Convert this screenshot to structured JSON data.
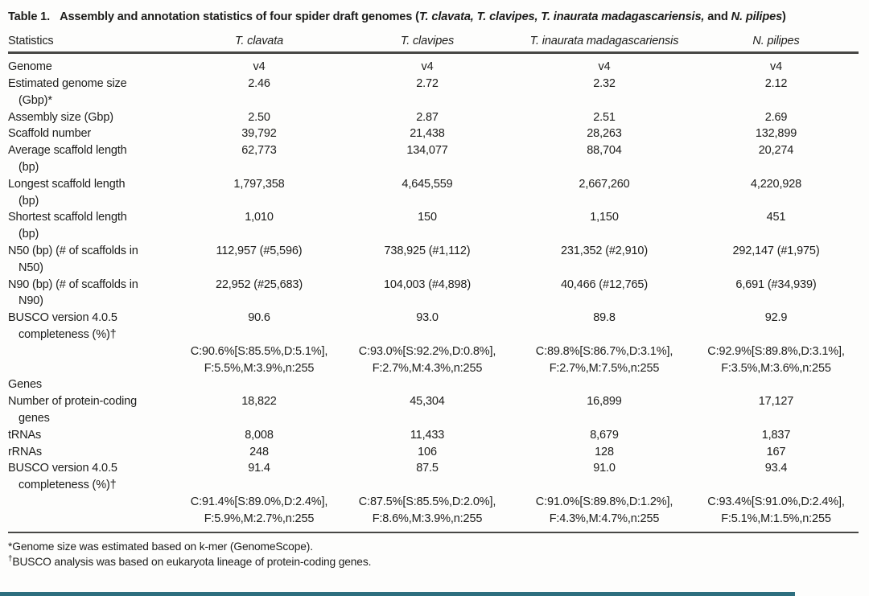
{
  "title": {
    "label": "Table 1.",
    "intro": "Assembly and annotation statistics of four spider draft genomes (",
    "species_group": "T. clavata, T. clavipes, T. inaurata madagascariensis,",
    "conjunction": "and",
    "last_species": "N. pilipes",
    "close_paren": ")"
  },
  "table": {
    "columns": [
      "Statistics",
      "T. clavata",
      "T. clavipes",
      "T. inaurata madagascariensis",
      "N. pilipes"
    ],
    "rows": [
      {
        "label": "Genome",
        "values": [
          "v4",
          "v4",
          "v4",
          "v4"
        ]
      },
      {
        "label": "Estimated genome size",
        "label2": "(Gbp)*",
        "values": [
          "2.46",
          "2.72",
          "2.32",
          "2.12"
        ]
      },
      {
        "label": "Assembly size (Gbp)",
        "values": [
          "2.50",
          "2.87",
          "2.51",
          "2.69"
        ]
      },
      {
        "label": "Scaffold number",
        "values": [
          "39,792",
          "21,438",
          "28,263",
          "132,899"
        ]
      },
      {
        "label": "Average scaffold length",
        "label2": "(bp)",
        "values": [
          "62,773",
          "134,077",
          "88,704",
          "20,274"
        ]
      },
      {
        "label": "Longest scaffold length",
        "label2": "(bp)",
        "values": [
          "1,797,358",
          "4,645,559",
          "2,667,260",
          "4,220,928"
        ]
      },
      {
        "label": "Shortest scaffold length",
        "label2": "(bp)",
        "values": [
          "1,010",
          "150",
          "1,150",
          "451"
        ]
      },
      {
        "label": "N50 (bp) (# of scaffolds in",
        "label2": "N50)",
        "values": [
          "112,957 (#5,596)",
          "738,925 (#1,112)",
          "231,352 (#2,910)",
          "292,147 (#1,975)"
        ]
      },
      {
        "label": "N90 (bp) (# of scaffolds in",
        "label2": "N90)",
        "values": [
          "22,952 (#25,683)",
          "104,003 (#4,898)",
          "40,466 (#12,765)",
          "6,691 (#34,939)"
        ]
      },
      {
        "label": "BUSCO version 4.0.5",
        "label2": "completeness (%)†",
        "values": [
          "90.6",
          "93.0",
          "89.8",
          "92.9"
        ]
      },
      {
        "values_l1": [
          "C:90.6%[S:85.5%,D:5.1%],",
          "C:93.0%[S:92.2%,D:0.8%],",
          "C:89.8%[S:86.7%,D:3.1%],",
          "C:92.9%[S:89.8%,D:3.1%],"
        ],
        "values_l2": [
          "F:5.5%,M:3.9%,n:255",
          "F:2.7%,M:4.3%,n:255",
          "F:2.7%,M:7.5%,n:255",
          "F:3.5%,M:3.6%,n:255"
        ]
      },
      {
        "label": "Genes",
        "section": true
      },
      {
        "label": "Number of protein-coding",
        "label2": "genes",
        "values": [
          "18,822",
          "45,304",
          "16,899",
          "17,127"
        ]
      },
      {
        "label": "tRNAs",
        "values": [
          "8,008",
          "11,433",
          "8,679",
          "1,837"
        ]
      },
      {
        "label": "rRNAs",
        "values": [
          "248",
          "106",
          "128",
          "167"
        ]
      },
      {
        "label": "BUSCO version 4.0.5",
        "label2": "completeness (%)†",
        "values": [
          "91.4",
          "87.5",
          "91.0",
          "93.4"
        ]
      },
      {
        "values_l1": [
          "C:91.4%[S:89.0%,D:2.4%],",
          "C:87.5%[S:85.5%,D:2.0%],",
          "C:91.0%[S:89.8%,D:1.2%],",
          "C:93.4%[S:91.0%,D:2.4%],"
        ],
        "values_l2": [
          "F:5.9%,M:2.7%,n:255",
          "F:8.6%,M:3.9%,n:255",
          "F:4.3%,M:4.7%,n:255",
          "F:5.1%,M:1.5%,n:255"
        ]
      }
    ]
  },
  "footnotes": [
    {
      "marker": "*",
      "text": "Genome size was estimated based on k-mer (GenomeScope)."
    },
    {
      "marker": "†",
      "text": "BUSCO analysis was based on eukaryota lineage of protein-coding genes."
    }
  ],
  "colors": {
    "text": "#1d1d1b",
    "rule": "#474745",
    "background": "#fdfdfc",
    "bottom_bar": "#2d6e7e"
  }
}
